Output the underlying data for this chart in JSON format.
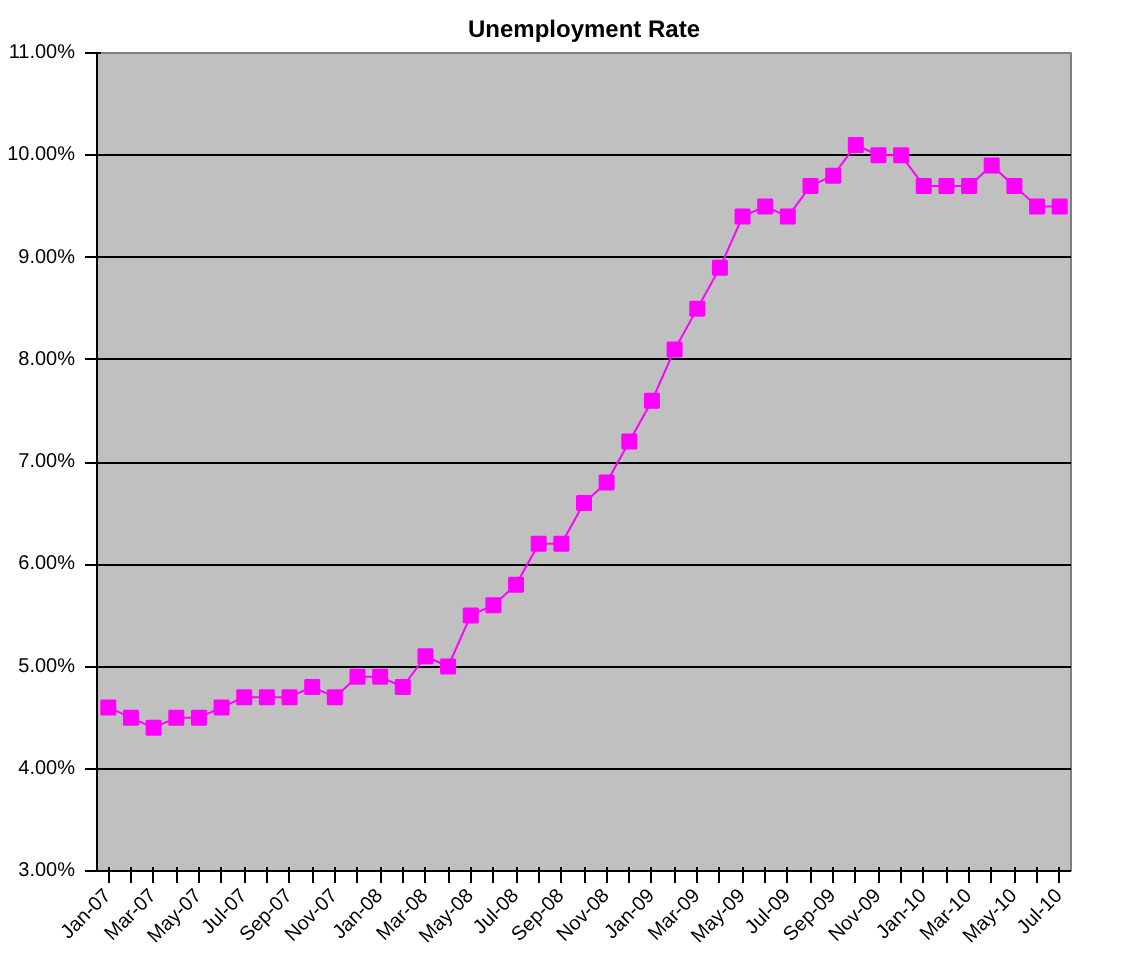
{
  "chart_data": {
    "type": "line",
    "title": "Unemployment Rate",
    "categories": [
      "Jan-07",
      null,
      "Mar-07",
      null,
      "May-07",
      null,
      "Jul-07",
      null,
      "Sep-07",
      null,
      "Nov-07",
      null,
      "Jan-08",
      null,
      "Mar-08",
      null,
      "May-08",
      null,
      "Jul-08",
      null,
      "Sep-08",
      null,
      "Nov-08",
      null,
      "Jan-09",
      null,
      "Mar-09",
      null,
      "May-09",
      null,
      "Jul-09",
      null,
      "Sep-09",
      null,
      "Nov-09",
      null,
      "Jan-10",
      null,
      "Mar-10",
      null,
      "May-10",
      null,
      "Jul-10"
    ],
    "series": [
      {
        "color": "#ff00ff",
        "values": [
          4.6,
          4.5,
          4.4,
          4.5,
          4.5,
          4.6,
          4.7,
          4.7,
          4.7,
          4.8,
          4.7,
          4.9,
          4.9,
          4.8,
          5.1,
          5.0,
          5.5,
          5.6,
          5.8,
          6.2,
          6.2,
          6.6,
          6.8,
          7.2,
          7.6,
          8.1,
          8.5,
          8.9,
          9.4,
          9.5,
          9.4,
          9.7,
          9.8,
          10.1,
          10.0,
          10.0,
          9.7,
          9.7,
          9.7,
          9.9,
          9.7,
          9.5,
          9.5
        ]
      }
    ],
    "ylim": [
      3,
      11
    ],
    "yticks": [
      {
        "value": 3,
        "label": "3.00%"
      },
      {
        "value": 4,
        "label": "4.00%"
      },
      {
        "value": 5,
        "label": "5.00%"
      },
      {
        "value": 6,
        "label": "6.00%"
      },
      {
        "value": 7,
        "label": "7.00%"
      },
      {
        "value": 8,
        "label": "8.00%"
      },
      {
        "value": 9,
        "label": "9.00%"
      },
      {
        "value": 10,
        "label": "10.00%"
      },
      {
        "value": 11,
        "label": "11.00%"
      }
    ],
    "grid": "y",
    "marker": "square",
    "line_style": "solid"
  }
}
